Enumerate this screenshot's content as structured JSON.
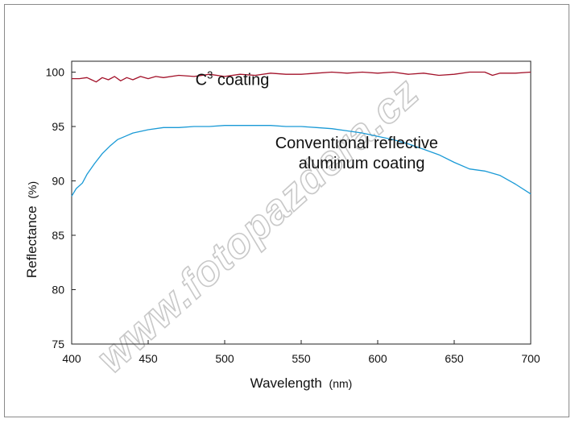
{
  "chart_data": {
    "type": "line",
    "xlabel": "Wavelength",
    "xlabel_unit": "(nm)",
    "ylabel": "Reflectance",
    "ylabel_unit": "(%)",
    "xlim": [
      400,
      700
    ],
    "ylim": [
      75,
      101
    ],
    "x_ticks": [
      400,
      450,
      500,
      550,
      600,
      650,
      700
    ],
    "y_ticks": [
      75,
      80,
      85,
      90,
      95,
      100
    ],
    "grid": false,
    "series": [
      {
        "name": "C3 coating",
        "color": "#a3122a",
        "x": [
          400,
          405,
          410,
          413,
          416,
          420,
          424,
          428,
          432,
          436,
          440,
          445,
          450,
          455,
          460,
          470,
          480,
          490,
          500,
          510,
          520,
          530,
          540,
          550,
          560,
          570,
          580,
          590,
          600,
          610,
          620,
          630,
          640,
          650,
          660,
          670,
          675,
          680,
          690,
          700
        ],
        "y": [
          99.4,
          99.4,
          99.5,
          99.3,
          99.1,
          99.5,
          99.3,
          99.6,
          99.2,
          99.5,
          99.3,
          99.6,
          99.4,
          99.6,
          99.5,
          99.7,
          99.6,
          99.8,
          99.6,
          99.8,
          99.7,
          99.9,
          99.8,
          99.8,
          99.9,
          100.0,
          99.9,
          100.0,
          99.9,
          100.0,
          99.8,
          99.9,
          99.7,
          99.8,
          100.0,
          100.0,
          99.7,
          99.9,
          99.9,
          100.0
        ]
      },
      {
        "name": "Conventional reflective aluminum coating",
        "color": "#1a9ad6",
        "x": [
          400,
          403,
          407,
          410,
          415,
          420,
          425,
          430,
          435,
          440,
          450,
          460,
          470,
          480,
          490,
          500,
          510,
          520,
          530,
          540,
          550,
          560,
          570,
          580,
          590,
          600,
          610,
          620,
          630,
          640,
          650,
          660,
          670,
          680,
          690,
          700
        ],
        "y": [
          88.6,
          89.3,
          89.8,
          90.6,
          91.6,
          92.5,
          93.2,
          93.8,
          94.1,
          94.4,
          94.7,
          94.9,
          94.9,
          95.0,
          95.0,
          95.1,
          95.1,
          95.1,
          95.1,
          95.0,
          95.0,
          94.9,
          94.8,
          94.6,
          94.4,
          94.1,
          93.8,
          93.4,
          92.9,
          92.4,
          91.7,
          91.1,
          90.9,
          90.5,
          89.7,
          88.8
        ]
      }
    ],
    "annotations": [
      {
        "series": 0,
        "text_main": "C",
        "text_sup": "3",
        "text_tail": " coating",
        "x": 505,
        "y": 98.8
      },
      {
        "series": 1,
        "lines": [
          "Conventional reflective",
          "aluminum coating"
        ],
        "x": 583,
        "y": 93.0
      }
    ],
    "watermark": "www.fotopazdera.cz"
  }
}
